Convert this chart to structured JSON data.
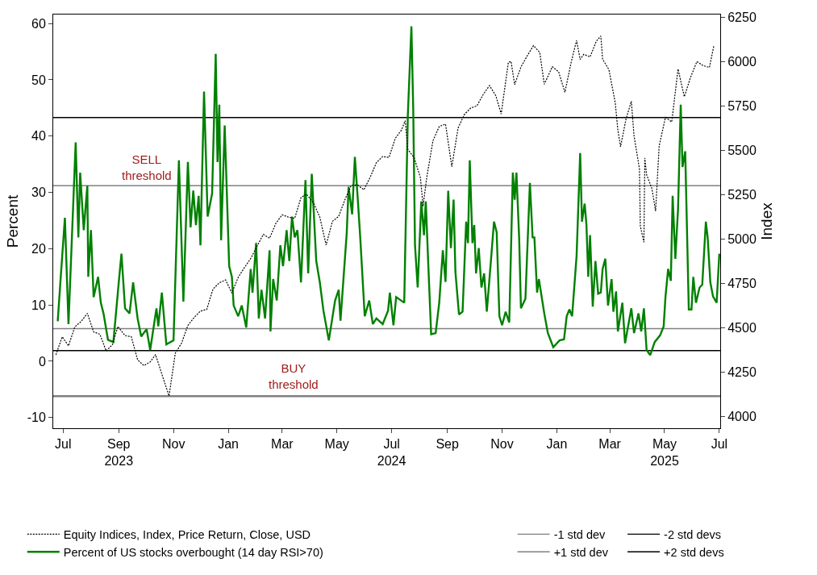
{
  "chart_data": {
    "type": "line",
    "ylabel": "Percent",
    "y2label": "Index",
    "legend": "bottom",
    "xlim": [
      "2023-06-20",
      "2025-07-02"
    ],
    "xticks": [
      {
        "value": "2023-07-01",
        "label": "Jul"
      },
      {
        "value": "2023-09-01",
        "label": "Sep\n2023"
      },
      {
        "value": "2023-11-01",
        "label": "Nov"
      },
      {
        "value": "2024-01-01",
        "label": "Jan"
      },
      {
        "value": "2024-03-01",
        "label": "Mar"
      },
      {
        "value": "2024-05-01",
        "label": "May"
      },
      {
        "value": "2024-07-01",
        "label": "Jul\n2024"
      },
      {
        "value": "2024-09-01",
        "label": "Sep"
      },
      {
        "value": "2024-11-01",
        "label": "Nov"
      },
      {
        "value": "2025-01-01",
        "label": "Jan"
      },
      {
        "value": "2025-03-01",
        "label": "Mar"
      },
      {
        "value": "2025-05-01",
        "label": "May\n2025"
      },
      {
        "value": "2025-07-01",
        "label": "Jul"
      }
    ],
    "ylim": [
      -11.9,
      61.6
    ],
    "yticks": [
      -10,
      0,
      10,
      20,
      30,
      40,
      50,
      60
    ],
    "y2lim": [
      3935,
      6265
    ],
    "y2ticks": [
      4000,
      4250,
      4500,
      4750,
      5000,
      5250,
      5500,
      5750,
      6000,
      6250
    ],
    "series": [
      {
        "name": "Equity Indices, Index, Price Return, Close, USD",
        "color": "#000000",
        "axis": "y2",
        "line_style": "dashed",
        "x": [
          "2023-06-23",
          "2023-06-30",
          "2023-07-07",
          "2023-07-14",
          "2023-07-21",
          "2023-07-28",
          "2023-08-04",
          "2023-08-11",
          "2023-08-18",
          "2023-08-25",
          "2023-08-31",
          "2023-09-08",
          "2023-09-15",
          "2023-09-22",
          "2023-09-29",
          "2023-10-06",
          "2023-10-12",
          "2023-10-20",
          "2023-10-27",
          "2023-11-03",
          "2023-11-10",
          "2023-11-17",
          "2023-11-24",
          "2023-12-01",
          "2023-12-08",
          "2023-12-15",
          "2023-12-22",
          "2023-12-29",
          "2024-01-05",
          "2024-01-12",
          "2024-01-19",
          "2024-01-26",
          "2024-02-02",
          "2024-02-09",
          "2024-02-16",
          "2024-02-23",
          "2024-03-01",
          "2024-03-08",
          "2024-03-15",
          "2024-03-22",
          "2024-03-28",
          "2024-04-05",
          "2024-04-12",
          "2024-04-19",
          "2024-04-26",
          "2024-05-03",
          "2024-05-10",
          "2024-05-17",
          "2024-05-24",
          "2024-05-31",
          "2024-06-07",
          "2024-06-14",
          "2024-06-21",
          "2024-06-28",
          "2024-07-05",
          "2024-07-12",
          "2024-07-16",
          "2024-07-19",
          "2024-07-26",
          "2024-08-02",
          "2024-08-05",
          "2024-08-09",
          "2024-08-16",
          "2024-08-23",
          "2024-08-30",
          "2024-09-06",
          "2024-09-13",
          "2024-09-20",
          "2024-09-27",
          "2024-10-04",
          "2024-10-11",
          "2024-10-18",
          "2024-10-25",
          "2024-10-31",
          "2024-11-08",
          "2024-11-11",
          "2024-11-15",
          "2024-11-22",
          "2024-11-29",
          "2024-12-06",
          "2024-12-13",
          "2024-12-18",
          "2024-12-27",
          "2025-01-03",
          "2025-01-10",
          "2025-01-17",
          "2025-01-23",
          "2025-01-27",
          "2025-01-31",
          "2025-02-07",
          "2025-02-14",
          "2025-02-19",
          "2025-02-21",
          "2025-02-28",
          "2025-03-07",
          "2025-03-10",
          "2025-03-13",
          "2025-03-19",
          "2025-03-25",
          "2025-03-28",
          "2025-04-03",
          "2025-04-04",
          "2025-04-08",
          "2025-04-09",
          "2025-04-11",
          "2025-04-17",
          "2025-04-21",
          "2025-04-25",
          "2025-05-02",
          "2025-05-09",
          "2025-05-16",
          "2025-05-23",
          "2025-05-30",
          "2025-06-06",
          "2025-06-13",
          "2025-06-20",
          "2025-06-25"
        ],
        "values": [
          4348,
          4450,
          4399,
          4505,
          4536,
          4582,
          4478,
          4464,
          4370,
          4406,
          4508,
          4457,
          4450,
          4320,
          4288,
          4308,
          4350,
          4224,
          4117,
          4358,
          4415,
          4514,
          4559,
          4595,
          4604,
          4719,
          4754,
          4770,
          4697,
          4784,
          4840,
          4891,
          4959,
          5027,
          5005,
          5089,
          5137,
          5124,
          5117,
          5234,
          5254,
          5204,
          5123,
          4967,
          5100,
          5128,
          5223,
          5303,
          5305,
          5278,
          5347,
          5431,
          5465,
          5460,
          5567,
          5615,
          5667,
          5505,
          5459,
          5347,
          5186,
          5344,
          5554,
          5634,
          5648,
          5408,
          5626,
          5702,
          5738,
          5751,
          5815,
          5865,
          5808,
          5705,
          5996,
          6001,
          5870,
          5969,
          6032,
          6090,
          6051,
          5872,
          5971,
          5942,
          5827,
          5997,
          6119,
          6012,
          6041,
          6026,
          6115,
          6144,
          6013,
          5955,
          5770,
          5614,
          5521,
          5675,
          5777,
          5581,
          5397,
          5074,
          4982,
          5457,
          5363,
          5283,
          5158,
          5525,
          5686,
          5660,
          5958,
          5802,
          5912,
          6000,
          5977,
          5967,
          6092
        ]
      },
      {
        "name": "Percent of US stocks overbought (14 day RSI>70)",
        "color": "#008000",
        "axis": "y",
        "line_style": "solid",
        "x": [
          "2023-06-25",
          "2023-06-28",
          "2023-07-03",
          "2023-07-07",
          "2023-07-15",
          "2023-07-18",
          "2023-07-20",
          "2023-07-24",
          "2023-07-28",
          "2023-07-29",
          "2023-08-01",
          "2023-08-04",
          "2023-08-09",
          "2023-08-12",
          "2023-08-15",
          "2023-08-20",
          "2023-08-26",
          "2023-09-01",
          "2023-09-04",
          "2023-09-08",
          "2023-09-13",
          "2023-09-17",
          "2023-09-22",
          "2023-09-26",
          "2023-10-02",
          "2023-10-06",
          "2023-10-13",
          "2023-10-15",
          "2023-10-19",
          "2023-10-24",
          "2023-11-01",
          "2023-11-07",
          "2023-11-12",
          "2023-11-17",
          "2023-11-20",
          "2023-11-23",
          "2023-11-26",
          "2023-11-29",
          "2023-12-01",
          "2023-12-05",
          "2023-12-09",
          "2023-12-14",
          "2023-12-18",
          "2023-12-20",
          "2023-12-22",
          "2023-12-24",
          "2023-12-28",
          "2024-01-02",
          "2024-01-05",
          "2024-01-07",
          "2024-01-12",
          "2024-01-16",
          "2024-01-21",
          "2024-01-26",
          "2024-01-28",
          "2024-02-01",
          "2024-02-04",
          "2024-02-07",
          "2024-02-11",
          "2024-02-16",
          "2024-02-17",
          "2024-02-20",
          "2024-02-24",
          "2024-02-28",
          "2024-03-02",
          "2024-03-06",
          "2024-03-09",
          "2024-03-12",
          "2024-03-15",
          "2024-03-18",
          "2024-03-22",
          "2024-03-27",
          "2024-03-30",
          "2024-04-03",
          "2024-04-08",
          "2024-04-12",
          "2024-04-16",
          "2024-04-22",
          "2024-04-29",
          "2024-05-03",
          "2024-05-05",
          "2024-05-12",
          "2024-05-14",
          "2024-05-18",
          "2024-05-21",
          "2024-05-24",
          "2024-05-27",
          "2024-06-01",
          "2024-06-06",
          "2024-06-10",
          "2024-06-14",
          "2024-06-21",
          "2024-06-27",
          "2024-06-29",
          "2024-07-03",
          "2024-07-06",
          "2024-07-15",
          "2024-07-19",
          "2024-07-23",
          "2024-07-25",
          "2024-07-27",
          "2024-07-30",
          "2024-08-03",
          "2024-08-06",
          "2024-08-08",
          "2024-08-11",
          "2024-08-14",
          "2024-08-19",
          "2024-08-23",
          "2024-08-27",
          "2024-08-30",
          "2024-09-02",
          "2024-09-05",
          "2024-09-08",
          "2024-09-10",
          "2024-09-14",
          "2024-09-18",
          "2024-09-22",
          "2024-09-24",
          "2024-09-26",
          "2024-09-29",
          "2024-10-01",
          "2024-10-03",
          "2024-10-06",
          "2024-10-09",
          "2024-10-12",
          "2024-10-15",
          "2024-10-20",
          "2024-10-23",
          "2024-10-26",
          "2024-10-29",
          "2024-11-01",
          "2024-11-05",
          "2024-11-09",
          "2024-11-13",
          "2024-11-15",
          "2024-11-17",
          "2024-11-20",
          "2024-11-22",
          "2024-11-27",
          "2024-12-02",
          "2024-12-05",
          "2024-12-07",
          "2024-12-10",
          "2024-12-12",
          "2024-12-18",
          "2024-12-22",
          "2024-12-28",
          "2025-01-04",
          "2025-01-09",
          "2025-01-12",
          "2025-01-15",
          "2025-01-18",
          "2025-01-23",
          "2025-01-27",
          "2025-01-29",
          "2025-02-01",
          "2025-02-03",
          "2025-02-05",
          "2025-02-07",
          "2025-02-10",
          "2025-02-13",
          "2025-02-16",
          "2025-02-19",
          "2025-02-21",
          "2025-02-24",
          "2025-02-27",
          "2025-03-03",
          "2025-03-05",
          "2025-03-08",
          "2025-03-10",
          "2025-03-15",
          "2025-03-18",
          "2025-03-25",
          "2025-03-28",
          "2025-04-02",
          "2025-04-05",
          "2025-04-08",
          "2025-04-11",
          "2025-04-15",
          "2025-04-20",
          "2025-04-26",
          "2025-04-30",
          "2025-05-02",
          "2025-05-05",
          "2025-05-08",
          "2025-05-10",
          "2025-05-13",
          "2025-05-16",
          "2025-05-19",
          "2025-05-21",
          "2025-05-24",
          "2025-05-28",
          "2025-05-31",
          "2025-06-02",
          "2025-06-05",
          "2025-06-09",
          "2025-06-12",
          "2025-06-16",
          "2025-06-18",
          "2025-06-21",
          "2025-06-24",
          "2025-06-28",
          "2025-07-01"
        ],
        "values": [
          7.1,
          14.1,
          25.5,
          6.6,
          38.9,
          22,
          33.5,
          23.3,
          31.2,
          15,
          23.3,
          11.4,
          15,
          10.4,
          8.5,
          3.8,
          3.4,
          14,
          19.1,
          9.4,
          8.5,
          14,
          7.6,
          4.4,
          5.7,
          2,
          9.4,
          6.2,
          12.2,
          3,
          3.7,
          35.7,
          10.6,
          35.4,
          23.8,
          30.3,
          24.2,
          29.4,
          20.6,
          47.9,
          25.7,
          29.8,
          54.6,
          35.4,
          45.6,
          21.5,
          41.9,
          16.9,
          15,
          9.9,
          8,
          9.9,
          6,
          16.4,
          12.2,
          21,
          7.6,
          12.7,
          7.6,
          19.7,
          5.3,
          14.6,
          10.8,
          20.6,
          16.9,
          23.3,
          17.8,
          25.7,
          22,
          23.3,
          14,
          32.2,
          15.6,
          33.3,
          17.8,
          14,
          9,
          3.7,
          10.8,
          12.7,
          7.2,
          22.9,
          31,
          26.1,
          36.3,
          29.4,
          22,
          8,
          10.8,
          6.6,
          7.6,
          6.6,
          9,
          12.2,
          6.4,
          11.4,
          10.4,
          43.7,
          59.5,
          45.1,
          20.6,
          13.1,
          28.4,
          22.4,
          28.4,
          16.4,
          4.8,
          5,
          10.4,
          19.7,
          14.1,
          30.3,
          20.1,
          28.7,
          15.9,
          8.3,
          8.8,
          24.8,
          21,
          35.7,
          21,
          24.2,
          15.6,
          20.1,
          13.1,
          15.6,
          8.8,
          18.7,
          24.8,
          22.9,
          8,
          6.4,
          8.8,
          6.9,
          33.5,
          28.7,
          33.5,
          22,
          9.4,
          11.1,
          31.7,
          22,
          22,
          12.2,
          14.6,
          8.5,
          5,
          2.5,
          3.7,
          3.9,
          8,
          9.2,
          8,
          18.7,
          37,
          24.8,
          28,
          24.2,
          15,
          22.4,
          9.7,
          17.8,
          12,
          12.2,
          16.4,
          18.2,
          9.9,
          14.6,
          8.8,
          12.4,
          5.3,
          10.4,
          3.2,
          9.4,
          5,
          8.5,
          5.3,
          9.4,
          2,
          1.1,
          3.4,
          4.6,
          6.2,
          11.4,
          16.4,
          14.3,
          29.4,
          18.2,
          27,
          45.6,
          34.5,
          37.3,
          9.2,
          9.2,
          15,
          10.4,
          13.1,
          13.6,
          24.8,
          22,
          14,
          11.5,
          10.4,
          19.1
        ]
      }
    ],
    "ref_lines": [
      {
        "axis": "y",
        "value": 5.8,
        "label": "-1 std dev",
        "color": "#808080"
      },
      {
        "axis": "y",
        "value": 1.9,
        "label": "-2 std devs",
        "color": "#000000"
      },
      {
        "axis": "y",
        "value": 31.2,
        "label": "+1 std dev",
        "color": "#808080"
      },
      {
        "axis": "y",
        "value": 43.3,
        "label": "+2 std devs",
        "color": "#000000"
      },
      {
        "axis": "y",
        "value": -6.2,
        "color": "#808080"
      }
    ],
    "annotations": [
      "SELL\nthreshold",
      "BUY\nthreshold"
    ]
  }
}
